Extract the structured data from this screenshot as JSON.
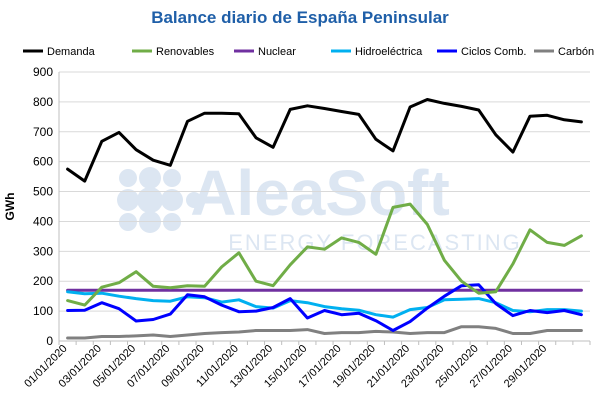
{
  "chart_data": {
    "type": "line",
    "title": "Balance diario de España Peninsular",
    "ylabel": "GWh",
    "xlabel": "",
    "ylim": [
      0,
      900
    ],
    "yticks": [
      "0",
      "100",
      "200",
      "300",
      "400",
      "500",
      "600",
      "700",
      "800",
      "900"
    ],
    "grid": true,
    "legend_position": "top",
    "watermark": {
      "line1": "AleaSoft",
      "line2": "ENERGY FORECASTING"
    },
    "x": [
      "01/01/2020",
      "02/01/2020",
      "03/01/2020",
      "04/01/2020",
      "05/01/2020",
      "06/01/2020",
      "07/01/2020",
      "08/01/2020",
      "09/01/2020",
      "10/01/2020",
      "11/01/2020",
      "12/01/2020",
      "13/01/2020",
      "14/01/2020",
      "15/01/2020",
      "16/01/2020",
      "17/01/2020",
      "18/01/2020",
      "19/01/2020",
      "20/01/2020",
      "21/01/2020",
      "22/01/2020",
      "23/01/2020",
      "24/01/2020",
      "25/01/2020",
      "26/01/2020",
      "27/01/2020",
      "28/01/2020",
      "29/01/2020",
      "30/01/2020",
      "31/01/2020"
    ],
    "xtick_labels": [
      "01/01/2020",
      "03/01/2020",
      "05/01/2020",
      "07/01/2020",
      "09/01/2020",
      "11/01/2020",
      "13/01/2020",
      "15/01/2020",
      "17/01/2020",
      "19/01/2020",
      "21/01/2020",
      "23/01/2020",
      "25/01/2020",
      "27/01/2020",
      "29/01/2020"
    ],
    "series": [
      {
        "name": "Demanda",
        "color": "#000000",
        "values": [
          575,
          535,
          668,
          698,
          640,
          605,
          588,
          735,
          762,
          762,
          760,
          680,
          648,
          775,
          787,
          778,
          768,
          758,
          675,
          636,
          783,
          808,
          795,
          785,
          773,
          690,
          632,
          752,
          755,
          740,
          733
        ]
      },
      {
        "name": "Renovables",
        "color": "#70ad47",
        "values": [
          135,
          120,
          180,
          195,
          232,
          183,
          178,
          185,
          183,
          248,
          295,
          200,
          185,
          255,
          315,
          307,
          345,
          330,
          290,
          447,
          458,
          390,
          270,
          200,
          160,
          165,
          258,
          372,
          330,
          320,
          352
        ]
      },
      {
        "name": "Nuclear",
        "color": "#7030a0",
        "values": [
          170,
          170,
          170,
          170,
          170,
          170,
          170,
          170,
          170,
          170,
          170,
          170,
          170,
          170,
          170,
          170,
          170,
          170,
          170,
          170,
          170,
          170,
          170,
          170,
          170,
          170,
          170,
          170,
          170,
          170,
          170
        ]
      },
      {
        "name": "Hidroeléctrica",
        "color": "#00b0f0",
        "values": [
          165,
          158,
          160,
          150,
          142,
          135,
          133,
          148,
          145,
          130,
          138,
          115,
          110,
          135,
          128,
          115,
          108,
          103,
          88,
          80,
          105,
          112,
          138,
          140,
          142,
          128,
          102,
          98,
          105,
          105,
          100
        ]
      },
      {
        "name": "Ciclos Comb.",
        "color": "#0000ff",
        "values": [
          102,
          103,
          128,
          108,
          67,
          72,
          90,
          155,
          148,
          120,
          98,
          100,
          112,
          142,
          77,
          102,
          88,
          93,
          68,
          35,
          65,
          110,
          150,
          185,
          188,
          125,
          85,
          102,
          95,
          102,
          88
        ]
      },
      {
        "name": "Carbón",
        "color": "#808080",
        "values": [
          10,
          10,
          15,
          15,
          17,
          20,
          15,
          20,
          25,
          28,
          30,
          35,
          35,
          35,
          38,
          25,
          28,
          28,
          32,
          30,
          25,
          28,
          28,
          48,
          48,
          42,
          25,
          25,
          35,
          35,
          35
        ]
      }
    ]
  }
}
